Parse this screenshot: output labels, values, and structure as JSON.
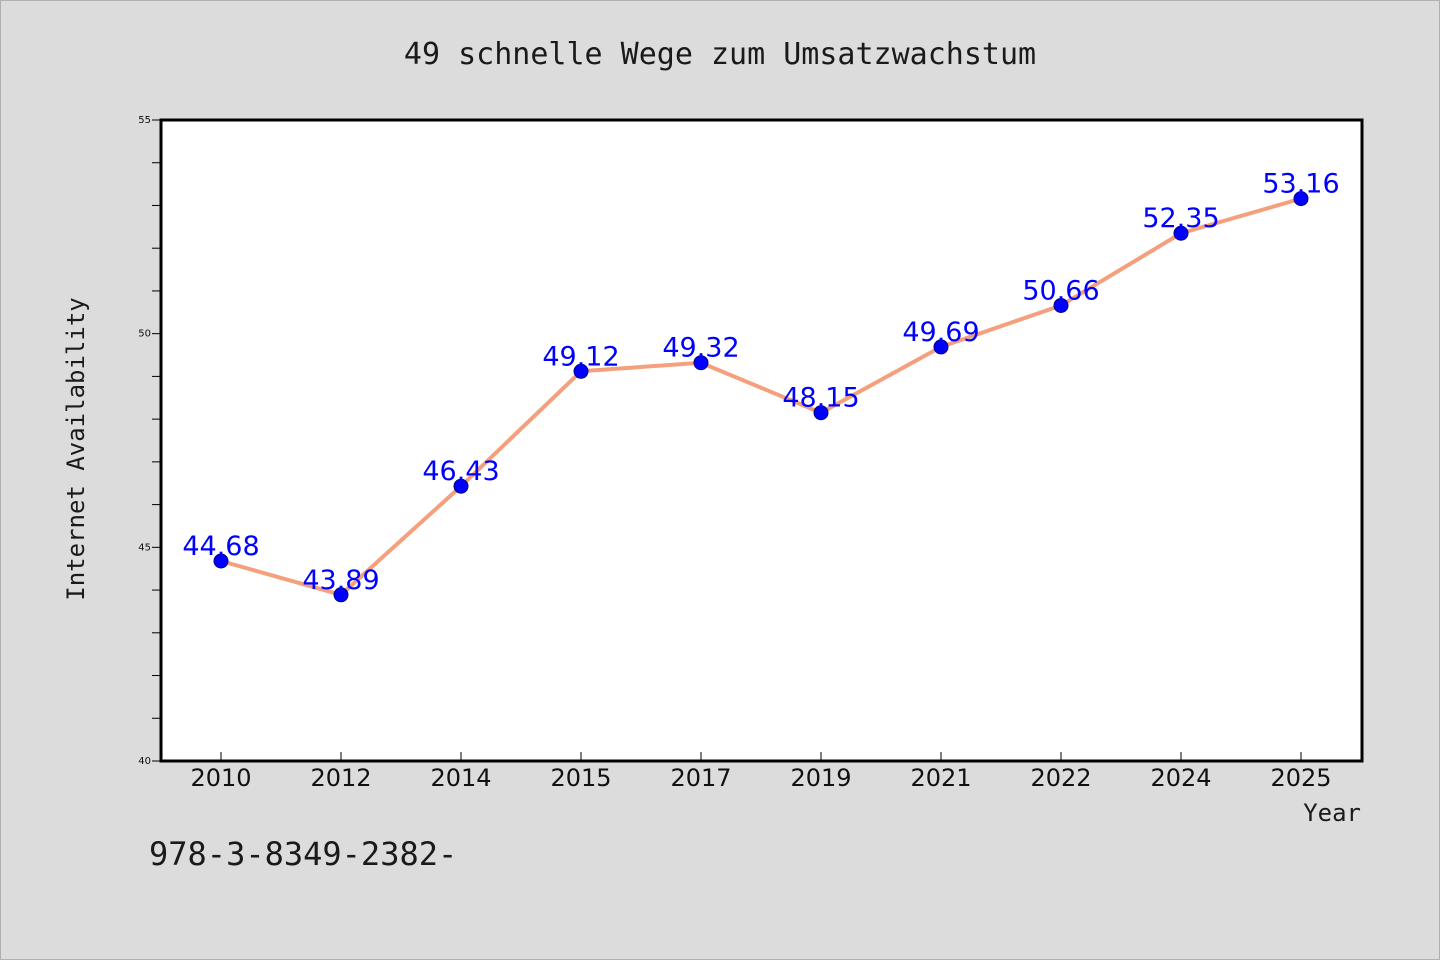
{
  "chart_data": {
    "type": "line",
    "title": "49 schnelle Wege zum Umsatzwachstum",
    "xlabel": "Year",
    "ylabel": "Internet Availability",
    "x": [
      "2010",
      "2012",
      "2014",
      "2015",
      "2017",
      "2019",
      "2021",
      "2022",
      "2024",
      "2025"
    ],
    "series": [
      {
        "values": [
          44.68,
          43.89,
          46.43,
          49.12,
          49.32,
          48.15,
          49.69,
          50.66,
          52.35,
          53.16
        ],
        "labels": [
          "44.68",
          "43.89",
          "46.43",
          "49.12",
          "49.32",
          "48.15",
          "49.69",
          "50.66",
          "52.35",
          "53.16"
        ]
      }
    ],
    "ylim": [
      40,
      55
    ],
    "yticks": [
      40,
      45,
      50,
      55
    ],
    "ytick_labels": [
      "40",
      "45",
      "50",
      "55"
    ],
    "y_minor_step": 1,
    "grid": false,
    "colors": {
      "line": "#f4a07c",
      "marker": "#0000ff",
      "data_label": "#0000ff",
      "background": "#dcdcdc",
      "plot_background": "#ffffff"
    }
  },
  "footer": {
    "text": "978-3-8349-2382-"
  }
}
